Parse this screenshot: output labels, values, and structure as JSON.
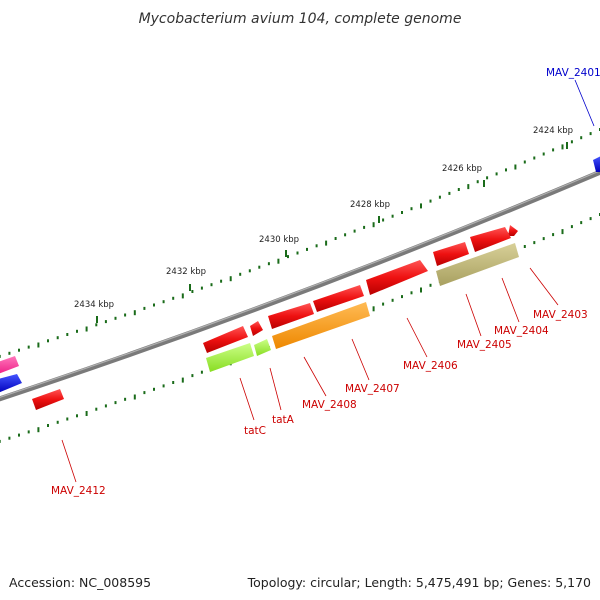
{
  "title": "Mycobacterium avium 104, complete genome",
  "footer": {
    "accession": "Accession: NC_008595",
    "summary": "Topology: circular; Length: 5,475,491 bp; Genes: 5,170"
  },
  "ticks": [
    "2424 kbp",
    "2426 kbp",
    "2428 kbp",
    "2430 kbp",
    "2432 kbp",
    "2434 kbp"
  ],
  "genes": [
    {
      "label": "MAV_2401",
      "color": "#0000cc"
    },
    {
      "label": "MAV_2403",
      "color": "#cc0000"
    },
    {
      "label": "MAV_2404",
      "color": "#cc0000"
    },
    {
      "label": "MAV_2405",
      "color": "#cc0000"
    },
    {
      "label": "MAV_2406",
      "color": "#cc0000"
    },
    {
      "label": "MAV_2407",
      "color": "#cc0000"
    },
    {
      "label": "MAV_2408",
      "color": "#cc0000"
    },
    {
      "label": "tatA",
      "color": "#cc0000"
    },
    {
      "label": "tatC",
      "color": "#cc0000"
    },
    {
      "label": "MAV_2412",
      "color": "#cc0000"
    }
  ],
  "colors": {
    "backbone": "#808080",
    "cds": "#ee1111",
    "feature_green": "#99ee33",
    "feature_orange": "#ff9900",
    "feature_khaki": "#b8b070",
    "feature_blue": "#1111ee",
    "feature_pink": "#ff3399",
    "tick": "#1a6b1a"
  }
}
